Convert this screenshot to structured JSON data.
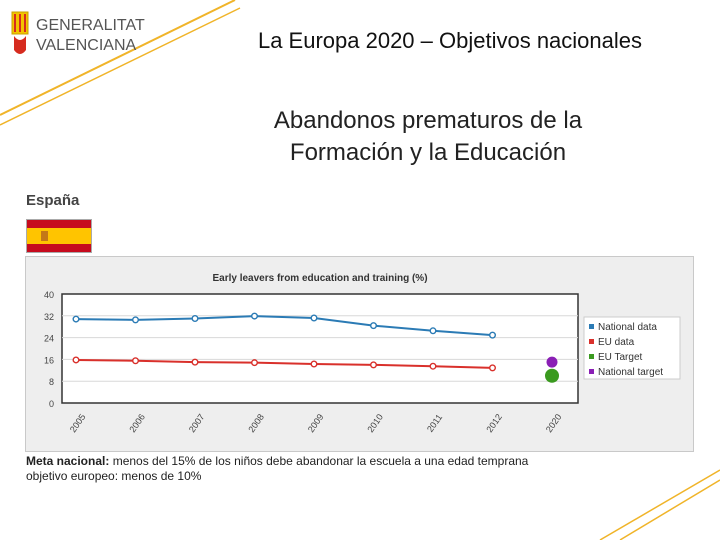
{
  "header": {
    "logo_line1": "GENERALITAT",
    "logo_line2": "VALENCIANA",
    "title": "La Europa 2020 – Objetivos nacionales"
  },
  "subtitle": {
    "line1": "Abandonos prematuros de la",
    "line2": "Formación y la Educación"
  },
  "country": "España",
  "flag_icon": "spain-flag-icon",
  "footer": {
    "meta_label": "Meta nacional:",
    "meta_text": "menos del 15% de los niños debe abandonar la escuela a una edad temprana",
    "objective_text": "objetivo europeo: menos de 10%"
  },
  "colors": {
    "accent_line": "#f0b429",
    "national": "#2b7bb5",
    "eu": "#d9302b",
    "eu_target": "#3a9a1f",
    "national_target": "#8a1fb5"
  },
  "chart_data": {
    "type": "line",
    "title": "Early leavers from education and training (%)",
    "xlabel": "",
    "ylabel": "",
    "categories": [
      "2005",
      "2006",
      "2007",
      "2008",
      "2009",
      "2010",
      "2011",
      "2012",
      "2020"
    ],
    "ylim": [
      0,
      40
    ],
    "yticks": [
      0,
      8,
      16,
      24,
      32,
      40
    ],
    "grid": true,
    "legend_position": "right",
    "series": [
      {
        "name": "National data",
        "values": [
          30.8,
          30.5,
          31.0,
          31.9,
          31.2,
          28.4,
          26.5,
          24.9,
          null
        ]
      },
      {
        "name": "EU data",
        "values": [
          15.8,
          15.5,
          15.0,
          14.8,
          14.3,
          14.0,
          13.5,
          12.9,
          null
        ]
      },
      {
        "name": "EU Target",
        "values": [
          null,
          null,
          null,
          null,
          null,
          null,
          null,
          null,
          10
        ]
      },
      {
        "name": "National target",
        "values": [
          null,
          null,
          null,
          null,
          null,
          null,
          null,
          null,
          15
        ]
      }
    ]
  }
}
